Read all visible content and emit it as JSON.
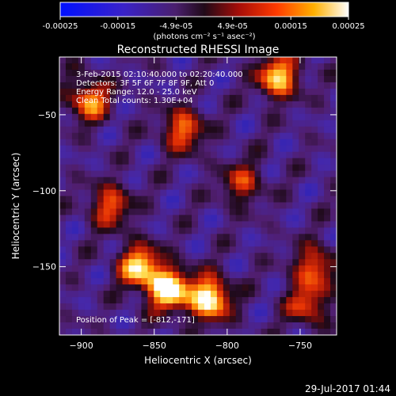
{
  "window": {
    "footer_timestamp": "29-Jul-2017 01:44"
  },
  "colorbar": {
    "tick_labels": [
      "-0.00025",
      "-0.00015",
      "-4.9e-05",
      "4.9e-05",
      "0.00015",
      "0.00025"
    ],
    "units_label": "(photons cm⁻² s⁻¹ asec⁻²)",
    "range": [
      -0.00025,
      0.00025
    ]
  },
  "chart_data": {
    "type": "heatmap",
    "title": "Reconstructed RHESSI Image",
    "xlabel": "Heliocentric X (arcsec)",
    "ylabel": "Heliocentric Y (arcsec)",
    "xlim": [
      -915,
      -725
    ],
    "ylim": [
      -195,
      -12
    ],
    "x_ticks": [
      -900,
      -850,
      -800,
      -750
    ],
    "y_ticks": [
      -150,
      -100,
      -50
    ],
    "grid": false,
    "annotations": [
      "3-Feb-2015 02:10:40.000 to 02:20:40.000",
      "Detectors: 3F 5F 6F 7F 8F 9F, Att 0",
      "Energy Range: 12.0 - 25.0 keV",
      "Clean     Total counts: 1.30E+04"
    ],
    "peak_label": "Position of Peak = [-812,-171]",
    "peak_position": [
      -812,
      -171
    ],
    "colormap": "blue-purple-red-yellow-white",
    "hot_regions": [
      {
        "x": -840,
        "y": -165,
        "intensity": 1.0
      },
      {
        "x": -812,
        "y": -171,
        "intensity": 1.0
      },
      {
        "x": -860,
        "y": -150,
        "intensity": 0.85
      },
      {
        "x": -765,
        "y": -25,
        "intensity": 0.85
      },
      {
        "x": -895,
        "y": -40,
        "intensity": 0.7
      },
      {
        "x": -830,
        "y": -60,
        "intensity": 0.65
      },
      {
        "x": -880,
        "y": -110,
        "intensity": 0.6
      },
      {
        "x": -740,
        "y": -150,
        "intensity": 0.6
      },
      {
        "x": -745,
        "y": -175,
        "intensity": 0.55
      },
      {
        "x": -790,
        "y": -95,
        "intensity": 0.5
      }
    ]
  }
}
